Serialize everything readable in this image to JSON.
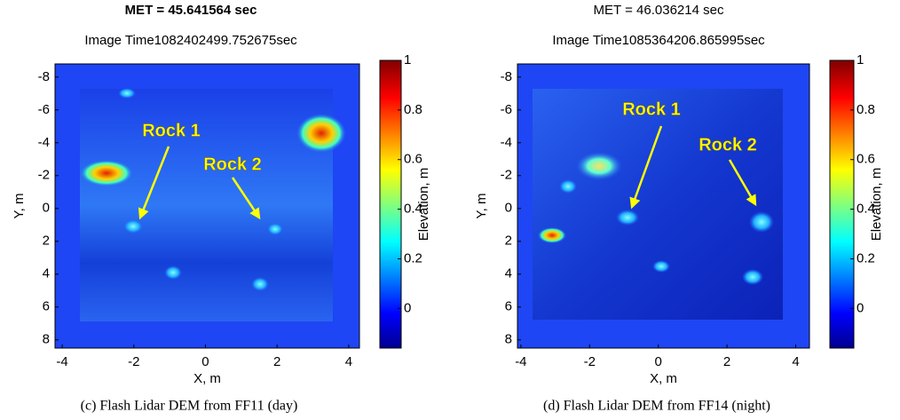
{
  "chart_data": [
    {
      "type": "heatmap",
      "title": "MET = 45.641564 sec",
      "subtitle": "Image Time1082402499.752675sec",
      "xlabel": "X, m",
      "ylabel": "Y, m",
      "xlim": [
        -4.2,
        4.3
      ],
      "ylim": [
        -8.8,
        8.5
      ],
      "xticks": [
        -4,
        -2,
        0,
        2,
        4
      ],
      "yticks": [
        -8,
        -6,
        -4,
        -2,
        0,
        2,
        4,
        6,
        8
      ],
      "colorbar": {
        "label": "Elevation, m",
        "lim": [
          -0.16,
          1
        ],
        "ticks": [
          0,
          0.2,
          0.4,
          0.6,
          0.8,
          1
        ]
      },
      "annotations": [
        "Rock 1",
        "Rock 2"
      ],
      "caption": "(c) Flash Lidar DEM from FF11 (day)"
    },
    {
      "type": "heatmap",
      "title": "MET = 46.036214 sec",
      "subtitle": "Image Time1085364206.865995sec",
      "xlabel": "X, m",
      "ylabel": "Y, m",
      "xlim": [
        -4.1,
        4.4
      ],
      "ylim": [
        -8.8,
        8.5
      ],
      "xticks": [
        -4,
        -2,
        0,
        2,
        4
      ],
      "yticks": [
        -8,
        -6,
        -4,
        -2,
        0,
        2,
        4,
        6,
        8
      ],
      "colorbar": {
        "label": "Elevation, m",
        "lim": [
          -0.16,
          1
        ],
        "ticks": [
          0,
          0.2,
          0.4,
          0.6,
          0.8,
          1
        ]
      },
      "annotations": [
        "Rock 1",
        "Rock 2"
      ],
      "caption": "(d) Flash Lidar DEM from FF14 (night)"
    }
  ]
}
